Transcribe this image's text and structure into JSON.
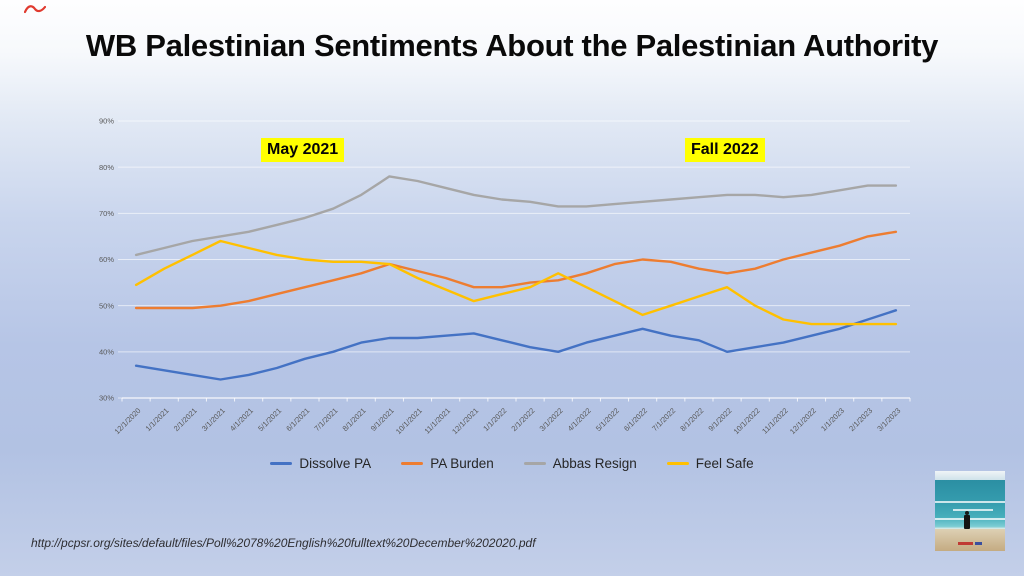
{
  "slide": {
    "title": "WB Palestinian Sentiments About the Palestinian Authority",
    "source_url": "http://pcpsr.org/sites/default/files/Poll%2078%20English%20fulltext%20December%202020.pdf"
  },
  "colors": {
    "highlight": "#FFFF00",
    "title_text": "#0a0a0a",
    "axis_text": "#595959",
    "gridline": "rgba(255,255,255,0.6)",
    "axis_line": "rgba(255,255,255,0.8)",
    "scribble_red": "#e03a2f"
  },
  "chart_data": {
    "type": "line",
    "title": "",
    "xlabel": "",
    "ylabel": "",
    "ylim": [
      30,
      90
    ],
    "ytick_step": 10,
    "ytick_format": "percent",
    "grid": "horizontal",
    "legend_position": "bottom",
    "annotations": [
      {
        "text": "May 2021"
      },
      {
        "text": "Fall 2022"
      }
    ],
    "categories": [
      "12/1/2020",
      "1/1/2021",
      "2/1/2021",
      "3/1/2021",
      "4/1/2021",
      "5/1/2021",
      "6/1/2021",
      "7/1/2021",
      "8/1/2021",
      "9/1/2021",
      "10/1/2021",
      "11/1/2021",
      "12/1/2021",
      "1/1/2022",
      "2/1/2022",
      "3/1/2022",
      "4/1/2022",
      "5/1/2022",
      "6/1/2022",
      "7/1/2022",
      "8/1/2022",
      "9/1/2022",
      "10/1/2022",
      "11/1/2022",
      "12/1/2022",
      "1/1/2023",
      "2/1/2023",
      "3/1/2023"
    ],
    "series": [
      {
        "name": "Dissolve PA",
        "color": "#4472C4",
        "values": [
          37,
          36,
          35,
          34,
          35,
          36.5,
          38.5,
          40,
          42,
          43,
          43,
          43.5,
          44,
          42.5,
          41,
          40,
          42,
          43.5,
          45,
          43.5,
          42.5,
          40,
          41,
          42,
          43.5,
          45,
          47,
          49
        ]
      },
      {
        "name": "PA Burden",
        "color": "#ED7D31",
        "values": [
          49.5,
          49.5,
          49.5,
          50,
          51,
          52.5,
          54,
          55.5,
          57,
          59,
          57.5,
          56,
          54,
          54,
          55,
          55.5,
          57,
          59,
          60,
          59.5,
          58,
          57,
          58,
          60,
          61.5,
          63,
          65,
          66
        ]
      },
      {
        "name": "Abbas Resign",
        "color": "#A6A6A6",
        "values": [
          61,
          62.5,
          64,
          65,
          66,
          67.5,
          69,
          71,
          74,
          78,
          77,
          75.5,
          74,
          73,
          72.5,
          71.5,
          71.5,
          72,
          72.5,
          73,
          73.5,
          74,
          74,
          73.5,
          74,
          75,
          76,
          76
        ]
      },
      {
        "name": "Feel Safe",
        "color": "#FFC000",
        "values": [
          54.5,
          58,
          61,
          64,
          62.5,
          61,
          60,
          59.5,
          59.5,
          59,
          56,
          53.5,
          51,
          52.5,
          54,
          57,
          54,
          51,
          48,
          50,
          52,
          54,
          50,
          47,
          46,
          46,
          46,
          46
        ]
      }
    ]
  }
}
